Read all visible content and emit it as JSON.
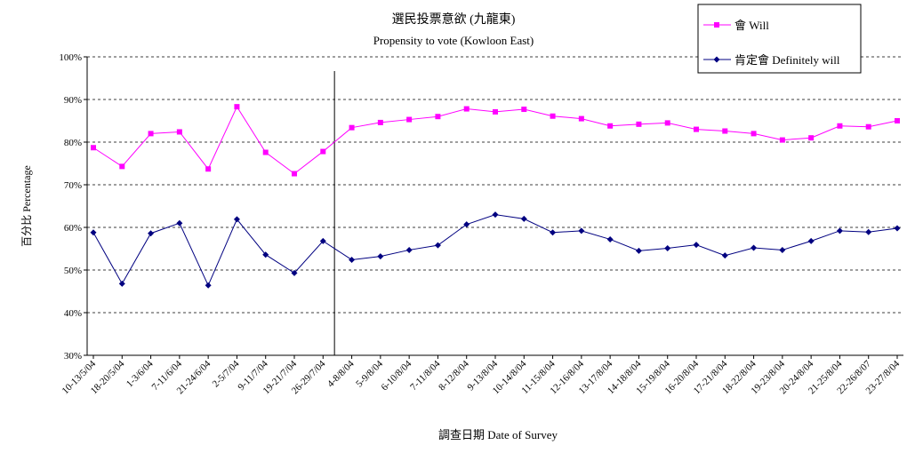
{
  "chart_data": {
    "type": "line",
    "title": "選民投票意欲 (九龍東)",
    "subtitle": "Propensity to vote (Kowloon East)",
    "xlabel": "調查日期 Date of Survey",
    "ylabel": "百分比 Percentage",
    "ylim": [
      30,
      100
    ],
    "yticks": [
      "30%",
      "40%",
      "50%",
      "60%",
      "70%",
      "80%",
      "90%",
      "100%"
    ],
    "grid": "horizontal-dashed",
    "legend_position": "top-right",
    "categories": [
      "10-13/5/04",
      "18-20/5/04",
      "1-3/6/04",
      "7-11/6/04",
      "21-24/6/04",
      "2-5/7/04",
      "9-11/7/04",
      "19-21/7/04",
      "26-29/7/04",
      "4-8/8/04",
      "5-9/8/04",
      "6-10/8/04",
      "7-11/8/04",
      "8-12/8/04",
      "9-13/8/04",
      "10-14/8/04",
      "11-15/8/04",
      "12-16/8/04",
      "13-17/8/04",
      "14-18/8/04",
      "15-19/8/04",
      "16-20/8/04",
      "17-21/8/04",
      "18-22/8/04",
      "19-23/8/04",
      "20-24/8/04",
      "21-25/8/04",
      "22-26/8/07",
      "23-27/8/04"
    ],
    "divider_after_index": 8,
    "series": [
      {
        "name": "會 Will",
        "color": "#ff00ff",
        "marker": "square",
        "values": [
          78.7,
          74.3,
          82.0,
          82.4,
          73.7,
          88.3,
          77.6,
          72.6,
          77.8,
          83.4,
          84.6,
          85.3,
          86.0,
          87.8,
          87.1,
          87.7,
          86.1,
          85.5,
          83.8,
          84.2,
          84.5,
          83.0,
          82.6,
          82.0,
          80.5,
          81.0,
          83.8,
          83.6,
          85.0
        ]
      },
      {
        "name": "肯定會 Definitely will",
        "color": "#000080",
        "marker": "diamond",
        "values": [
          58.8,
          46.8,
          58.6,
          61.0,
          46.4,
          61.9,
          53.6,
          49.3,
          56.8,
          52.4,
          53.2,
          54.7,
          55.8,
          60.7,
          63.0,
          62.0,
          58.8,
          59.2,
          57.2,
          54.5,
          55.1,
          55.9,
          53.4,
          55.2,
          54.7,
          56.8,
          59.2,
          58.9,
          59.8
        ]
      }
    ]
  }
}
